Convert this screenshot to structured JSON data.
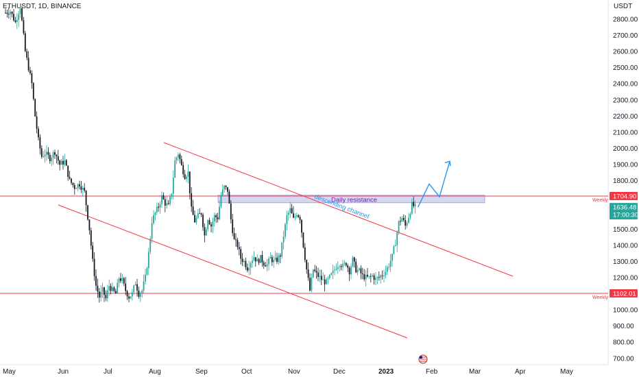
{
  "header": {
    "ticker": "ETHUSDT, 1D, BINANCE",
    "currency": "USDT"
  },
  "colors": {
    "up": "#26a69a",
    "down": "#131722",
    "resistance": "#f23645",
    "channel": "#f23645",
    "zone_fill": "#c5cae9",
    "arrow": "#2196f3",
    "price_label": "#26a69a"
  },
  "chart_data": {
    "type": "candlestick",
    "y_axis": {
      "ticks": [
        "2800.00",
        "2700.00",
        "2600.00",
        "2500.00",
        "2400.00",
        "2300.00",
        "2200.00",
        "2100.00",
        "2000.00",
        "1900.00",
        "1800.00",
        "1700.00",
        "1600.00",
        "1500.00",
        "1400.00",
        "1300.00",
        "1200.00",
        "1100.00",
        "1000.00",
        "900.00",
        "800.00",
        "700.00"
      ],
      "range": [
        665,
        2925
      ]
    },
    "x_axis": {
      "ticks": [
        {
          "label": "May",
          "bold": false
        },
        {
          "label": "Jun",
          "bold": false
        },
        {
          "label": "Jul",
          "bold": false
        },
        {
          "label": "Aug",
          "bold": false
        },
        {
          "label": "Sep",
          "bold": false
        },
        {
          "label": "Oct",
          "bold": false
        },
        {
          "label": "Nov",
          "bold": false
        },
        {
          "label": "Dec",
          "bold": false
        },
        {
          "label": "2023",
          "bold": true
        },
        {
          "label": "Feb",
          "bold": false
        },
        {
          "label": "Mar",
          "bold": false
        },
        {
          "label": "Apr",
          "bold": false
        },
        {
          "label": "May",
          "bold": false
        }
      ]
    },
    "close_path": [
      [
        0,
        2840
      ],
      [
        3,
        2850
      ],
      [
        6,
        2780
      ],
      [
        9,
        2880
      ],
      [
        12,
        2600
      ],
      [
        14,
        2500
      ],
      [
        16,
        2400
      ],
      [
        18,
        2200
      ],
      [
        20,
        2050
      ],
      [
        22,
        1950
      ],
      [
        24,
        1970
      ],
      [
        27,
        1940
      ],
      [
        30,
        1980
      ],
      [
        33,
        1900
      ],
      [
        36,
        1920
      ],
      [
        39,
        1800
      ],
      [
        42,
        1760
      ],
      [
        45,
        1780
      ],
      [
        48,
        1730
      ],
      [
        51,
        1500
      ],
      [
        53,
        1300
      ],
      [
        55,
        1150
      ],
      [
        57,
        1080
      ],
      [
        59,
        1120
      ],
      [
        61,
        1070
      ],
      [
        63,
        1150
      ],
      [
        65,
        1120
      ],
      [
        67,
        1100
      ],
      [
        69,
        1200
      ],
      [
        71,
        1180
      ],
      [
        73,
        1120
      ],
      [
        75,
        1080
      ],
      [
        77,
        1100
      ],
      [
        79,
        1170
      ],
      [
        81,
        1100
      ],
      [
        83,
        1120
      ],
      [
        85,
        1200
      ],
      [
        87,
        1350
      ],
      [
        89,
        1550
      ],
      [
        91,
        1600
      ],
      [
        93,
        1640
      ],
      [
        95,
        1700
      ],
      [
        97,
        1660
      ],
      [
        99,
        1640
      ],
      [
        101,
        1730
      ],
      [
        103,
        1920
      ],
      [
        105,
        1970
      ],
      [
        107,
        1890
      ],
      [
        109,
        1830
      ],
      [
        111,
        1850
      ],
      [
        113,
        1620
      ],
      [
        115,
        1550
      ],
      [
        117,
        1580
      ],
      [
        119,
        1600
      ],
      [
        121,
        1460
      ],
      [
        123,
        1570
      ],
      [
        125,
        1520
      ],
      [
        127,
        1580
      ],
      [
        129,
        1570
      ],
      [
        131,
        1710
      ],
      [
        133,
        1760
      ],
      [
        135,
        1740
      ],
      [
        137,
        1560
      ],
      [
        139,
        1430
      ],
      [
        141,
        1400
      ],
      [
        143,
        1320
      ],
      [
        145,
        1300
      ],
      [
        147,
        1260
      ],
      [
        149,
        1300
      ],
      [
        151,
        1330
      ],
      [
        153,
        1300
      ],
      [
        155,
        1320
      ],
      [
        157,
        1290
      ],
      [
        159,
        1280
      ],
      [
        161,
        1320
      ],
      [
        163,
        1300
      ],
      [
        165,
        1310
      ],
      [
        167,
        1340
      ],
      [
        169,
        1460
      ],
      [
        171,
        1580
      ],
      [
        173,
        1620
      ],
      [
        175,
        1560
      ],
      [
        177,
        1600
      ],
      [
        179,
        1570
      ],
      [
        181,
        1400
      ],
      [
        183,
        1250
      ],
      [
        185,
        1120
      ],
      [
        187,
        1250
      ],
      [
        189,
        1220
      ],
      [
        191,
        1200
      ],
      [
        193,
        1180
      ],
      [
        195,
        1170
      ],
      [
        197,
        1200
      ],
      [
        199,
        1230
      ],
      [
        201,
        1270
      ],
      [
        203,
        1290
      ],
      [
        205,
        1270
      ],
      [
        207,
        1290
      ],
      [
        209,
        1240
      ],
      [
        211,
        1310
      ],
      [
        213,
        1250
      ],
      [
        215,
        1240
      ],
      [
        217,
        1210
      ],
      [
        219,
        1200
      ],
      [
        221,
        1200
      ],
      [
        223,
        1210
      ],
      [
        225,
        1190
      ],
      [
        227,
        1200
      ],
      [
        229,
        1220
      ],
      [
        231,
        1240
      ],
      [
        233,
        1280
      ],
      [
        235,
        1330
      ],
      [
        237,
        1420
      ],
      [
        239,
        1540
      ],
      [
        241,
        1570
      ],
      [
        243,
        1520
      ],
      [
        245,
        1580
      ],
      [
        247,
        1650
      ],
      [
        249,
        1636
      ]
    ],
    "annotations": {
      "daily_resistance": {
        "label": "Daily resistance",
        "low": 1663,
        "high": 1710
      },
      "descending_channel": {
        "label": "descending channel"
      },
      "levels": [
        {
          "value": 1704.9,
          "label": "1704.90",
          "tag": "Weekly"
        },
        {
          "value": 1102.01,
          "label": "1102.01",
          "tag": "Weekly"
        }
      ],
      "current_price": {
        "value": 1636.48,
        "label": "1636.48",
        "countdown": "17:00:30"
      },
      "projection": [
        1636,
        1780,
        1700,
        1920
      ]
    }
  }
}
